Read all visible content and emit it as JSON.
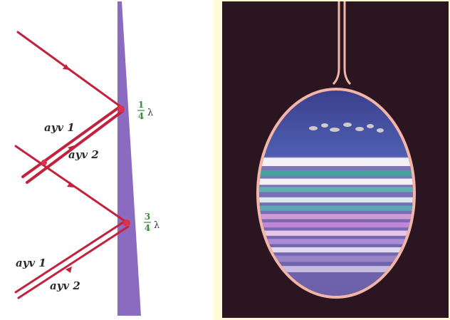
{
  "colors": {
    "frame": "#fffbd6",
    "ray": "#c3223d",
    "wedge": "#8a6bc0",
    "fraction": "#3a8a3a",
    "photo_bg": "#2a1520",
    "loop": "#f2b5a8"
  },
  "left_panel": {
    "labels": {
      "upper_ray_1": "ayv 1",
      "upper_ray_2": "ayv 2",
      "lower_ray_1": "ayv 1",
      "lower_ray_2": "ayv 2"
    },
    "thickness_top": {
      "num": "1",
      "den": "4",
      "sym": "λ"
    },
    "thickness_bottom": {
      "num": "3",
      "den": "4",
      "sym": "λ"
    }
  },
  "right_panel": {
    "bands": [
      {
        "color": "#ffffff",
        "top": 0.33,
        "height": 0.04
      },
      {
        "color": "#3fa69b",
        "top": 0.39,
        "height": 0.03
      },
      {
        "color": "#ffffff",
        "top": 0.43,
        "height": 0.03
      },
      {
        "color": "#5fb6b0",
        "top": 0.47,
        "height": 0.025
      },
      {
        "color": "#e6f5f3",
        "top": 0.52,
        "height": 0.025
      },
      {
        "color": "#56aeb6",
        "top": 0.56,
        "height": 0.025
      },
      {
        "color": "#d9a0d6",
        "top": 0.6,
        "height": 0.025
      },
      {
        "color": "#c888d8",
        "top": 0.64,
        "height": 0.025
      },
      {
        "color": "#f5d0ef",
        "top": 0.68,
        "height": 0.025
      },
      {
        "color": "#b38fdc",
        "top": 0.72,
        "height": 0.025
      },
      {
        "color": "#f0e6f5",
        "top": 0.76,
        "height": 0.025
      },
      {
        "color": "#9f86c8",
        "top": 0.8,
        "height": 0.03
      },
      {
        "color": "#cfc4e6",
        "top": 0.85,
        "height": 0.03
      }
    ]
  }
}
